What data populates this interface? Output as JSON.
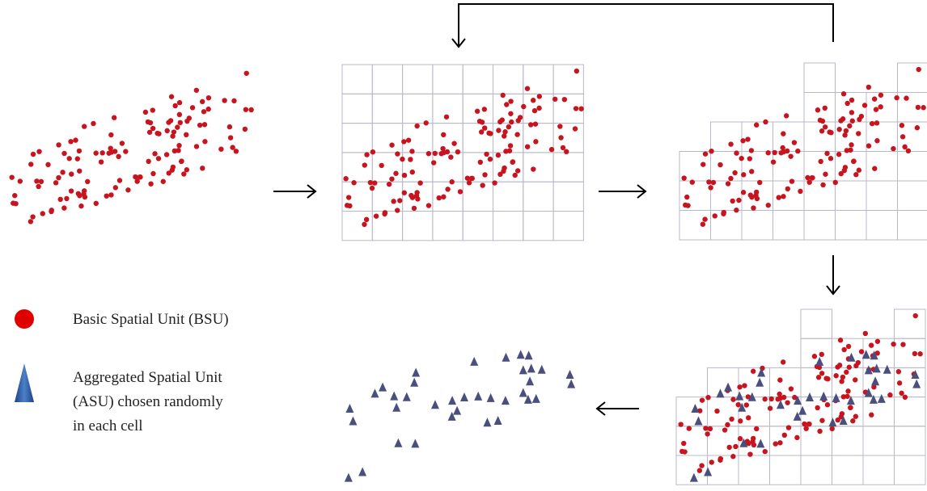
{
  "legend": {
    "items": [
      {
        "label": "Basic Spatial Unit (BSU)"
      },
      {
        "label_lines": [
          "Aggregated Spatial Unit",
          "(ASU) chosen randomly",
          "in each cell"
        ]
      }
    ]
  }
}
